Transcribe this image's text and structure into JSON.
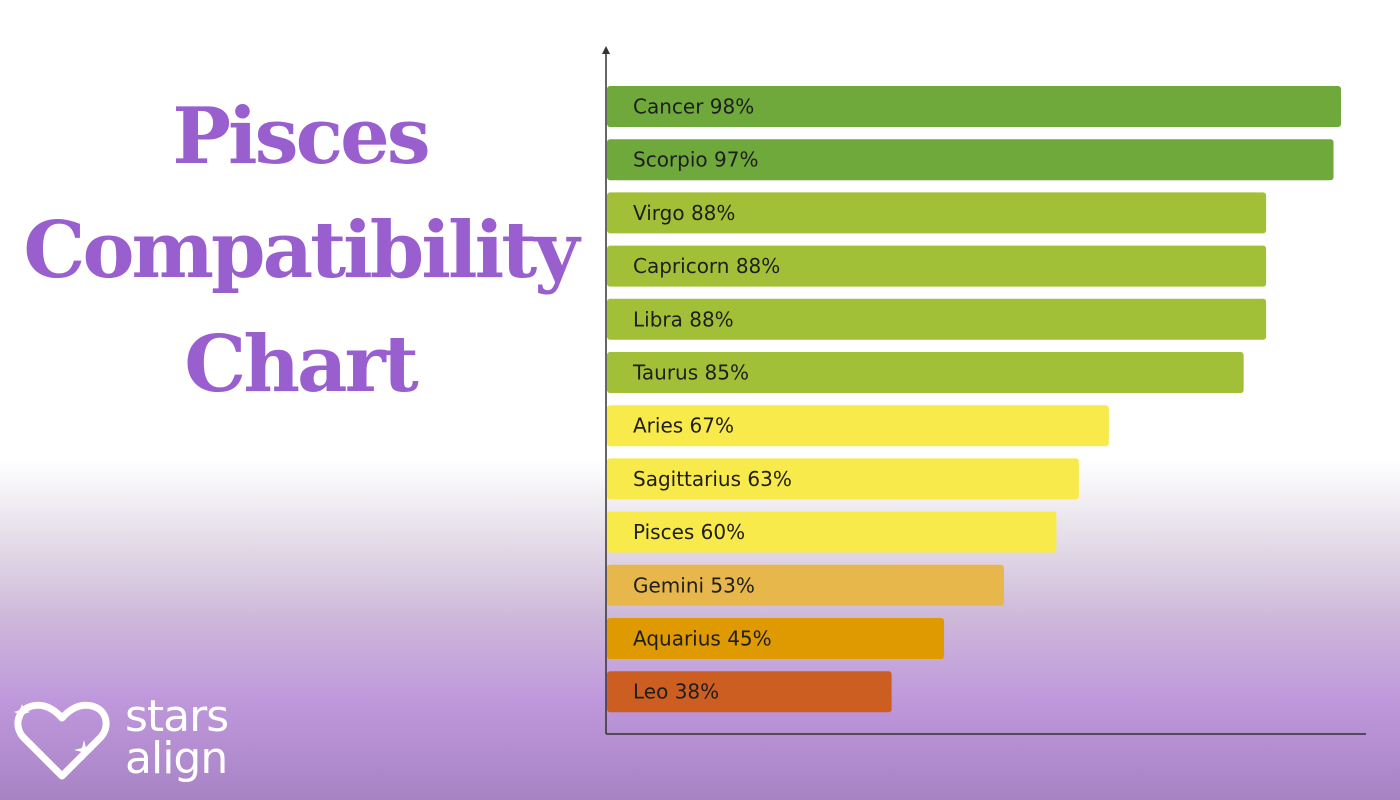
{
  "heading": {
    "lines": [
      "Pisces",
      "Compatibility",
      "Chart"
    ]
  },
  "logo": {
    "line1": "stars",
    "line2": "align",
    "icon": "heart-sparkle-icon"
  },
  "colors": {
    "title": "#9a5fcf",
    "very_high": "#6fa83b",
    "high": "#a2c037",
    "medium": "#f7ea4a",
    "low": "#e7b74b",
    "lower": "#df9901",
    "lowest": "#cd5e21",
    "axis": "#333333"
  },
  "chart_data": {
    "type": "bar",
    "orientation": "horizontal",
    "xlim": [
      0,
      100
    ],
    "categories": [
      "Cancer",
      "Scorpio",
      "Virgo",
      "Capricorn",
      "Libra",
      "Taurus",
      "Aries",
      "Sagittarius",
      "Pisces",
      "Gemini",
      "Aquarius",
      "Leo"
    ],
    "values": [
      98,
      97,
      88,
      88,
      88,
      85,
      67,
      63,
      60,
      53,
      45,
      38
    ],
    "labels": [
      "Cancer 98%",
      "Scorpio 97%",
      "Virgo 88%",
      "Capricorn 88%",
      "Libra 88%",
      "Taurus 85%",
      "Aries 67%",
      "Sagittarius 63%",
      "Pisces 60%",
      "Gemini 53%",
      "Aquarius 45%",
      "Leo 38%"
    ],
    "bar_colors": [
      "#6fa83b",
      "#6fa83b",
      "#a2c037",
      "#a2c037",
      "#a2c037",
      "#a2c037",
      "#f7ea4a",
      "#f7ea4a",
      "#f7ea4a",
      "#e7b74b",
      "#df9901",
      "#cd5e21"
    ],
    "grid": false,
    "legend": "none"
  }
}
